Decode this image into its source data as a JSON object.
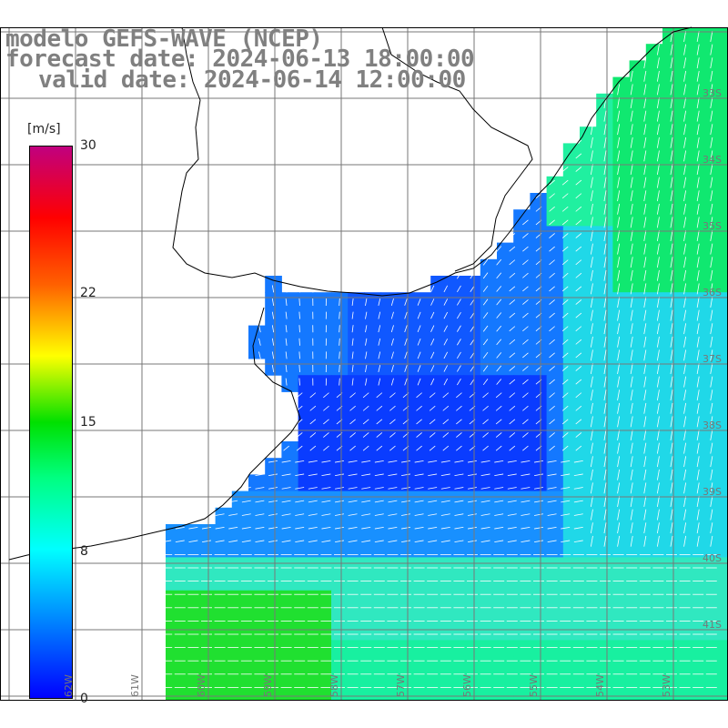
{
  "title": {
    "line1": "modelo GEFS-WAVE (NCEP)",
    "line2": "forecast date: 2024-06-13 18:00:00",
    "line3": "valid date: 2024-06-14 12:00:00"
  },
  "colorbar": {
    "unit": "[m/s]",
    "ticks": [
      {
        "label": "30",
        "value": 30
      },
      {
        "label": "22",
        "value": 22
      },
      {
        "label": "15",
        "value": 15
      },
      {
        "label": "8",
        "value": 8
      },
      {
        "label": "0",
        "value": 0
      }
    ],
    "colors": [
      "#0000ff",
      "#00c8ff",
      "#00ffc8",
      "#00e000",
      "#ffff00",
      "#ff8000",
      "#ff0000",
      "#c80078"
    ]
  },
  "lat_labels": [
    "33S",
    "34S",
    "35S",
    "36S",
    "37S",
    "38S",
    "39S",
    "40S",
    "41S"
  ],
  "lon_labels": [
    "62W",
    "61W",
    "60W",
    "59W",
    "58W",
    "57W",
    "56W",
    "55W",
    "54W",
    "53W"
  ],
  "colors": {
    "land": "#ffffff",
    "grid": "#777777",
    "coast": "#000000",
    "arrow": "#ffffff"
  }
}
